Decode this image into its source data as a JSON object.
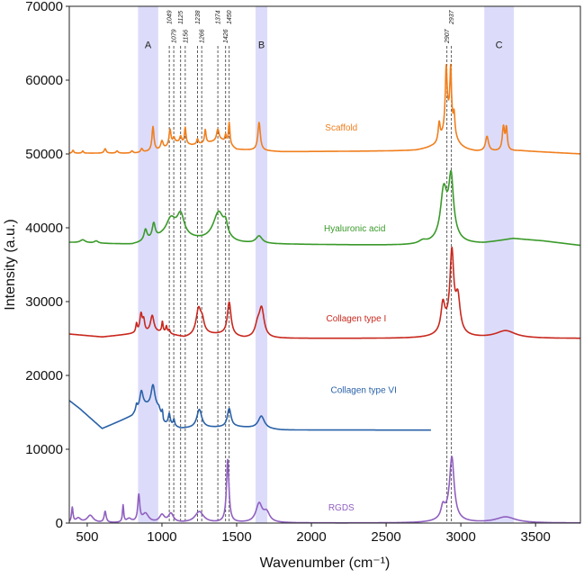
{
  "chart_data": {
    "type": "line",
    "title": "",
    "xlabel": "Wavenumber (cm⁻¹)",
    "ylabel": "Intensity (a.u.)",
    "xlim": [
      380,
      3800
    ],
    "ylim": [
      0,
      70000
    ],
    "xticks": [
      "500",
      "1000",
      "1500",
      "2000",
      "2500",
      "3000",
      "3500"
    ],
    "yticks": [
      "0",
      "10000",
      "20000",
      "30000",
      "40000",
      "50000",
      "60000",
      "70000"
    ],
    "grid": false,
    "legend": "none",
    "shaded_regions": [
      {
        "label": "A",
        "range": [
          840,
          975
        ]
      },
      {
        "label": "B",
        "range": [
          1626,
          1705
        ]
      },
      {
        "label": "C",
        "range": [
          3157,
          3355
        ]
      }
    ],
    "shade_color": "#dcdcfa",
    "reference_lines": [
      "1049",
      "1079",
      "1125",
      "1156",
      "1238",
      "1266",
      "1374",
      "1426",
      "1450",
      "2907",
      "2937"
    ],
    "series_model": "baseline (piecewise linear) + Lorentzian peaks [center cm-1, height a.u., half-width cm-1]",
    "series": [
      {
        "name": "Scaffold",
        "color": "#f07f1e",
        "label_at": [
          2200,
          53200
        ],
        "xrange": [
          380,
          3800
        ],
        "baseline": [
          [
            380,
            50100
          ],
          [
            820,
            50100
          ],
          [
            1000,
            50500
          ],
          [
            1100,
            51500
          ],
          [
            1200,
            51200
          ],
          [
            1400,
            51800
          ],
          [
            1500,
            50600
          ],
          [
            1800,
            50300
          ],
          [
            2700,
            50400
          ],
          [
            2800,
            50600
          ],
          [
            3100,
            50200
          ],
          [
            3400,
            50400
          ],
          [
            3800,
            50000
          ]
        ],
        "peaks": [
          [
            405,
            400,
            6
          ],
          [
            470,
            300,
            6
          ],
          [
            620,
            600,
            8
          ],
          [
            700,
            300,
            8
          ],
          [
            800,
            300,
            8
          ],
          [
            865,
            500,
            8
          ],
          [
            940,
            3300,
            8
          ],
          [
            1000,
            1200,
            10
          ],
          [
            1054,
            2200,
            8
          ],
          [
            1080,
            800,
            8
          ],
          [
            1125,
            900,
            8
          ],
          [
            1156,
            2200,
            6
          ],
          [
            1238,
            700,
            6
          ],
          [
            1290,
            1800,
            6
          ],
          [
            1374,
            1600,
            10
          ],
          [
            1426,
            1000,
            6
          ],
          [
            1450,
            3000,
            6
          ],
          [
            1650,
            3800,
            10
          ],
          [
            2920,
            4500,
            40
          ],
          [
            2855,
            2500,
            8
          ],
          [
            2902,
            7500,
            7
          ],
          [
            2932,
            7000,
            6
          ],
          [
            2955,
            2500,
            6
          ],
          [
            3175,
            2000,
            12
          ],
          [
            3285,
            3200,
            9
          ],
          [
            3305,
            2900,
            7
          ]
        ]
      },
      {
        "name": "Hyaluronic acid",
        "color": "#3a9a2a",
        "label_at": [
          2290,
          39500
        ],
        "xrange": [
          380,
          3800
        ],
        "baseline": [
          [
            380,
            38000
          ],
          [
            800,
            37700
          ],
          [
            1000,
            38500
          ],
          [
            1200,
            38300
          ],
          [
            1500,
            37800
          ],
          [
            2600,
            37600
          ],
          [
            3000,
            37600
          ],
          [
            3150,
            37800
          ],
          [
            3350,
            38500
          ],
          [
            3550,
            38200
          ],
          [
            3800,
            37600
          ]
        ],
        "peaks": [
          [
            470,
            400,
            20
          ],
          [
            560,
            300,
            15
          ],
          [
            890,
            1500,
            12
          ],
          [
            945,
            2000,
            12
          ],
          [
            1060,
            2500,
            40
          ],
          [
            1125,
            3000,
            30
          ],
          [
            1380,
            4000,
            45
          ],
          [
            1426,
            1500,
            15
          ],
          [
            1650,
            1000,
            25
          ],
          [
            2745,
            400,
            30
          ],
          [
            2885,
            6000,
            25
          ],
          [
            2935,
            7000,
            18
          ],
          [
            2920,
            2000,
            60
          ]
        ]
      },
      {
        "name": "Collagen type I",
        "color": "#c8281e",
        "label_at": [
          2300,
          27300
        ],
        "xrange": [
          380,
          3800
        ],
        "baseline": [
          [
            380,
            25600
          ],
          [
            600,
            25200
          ],
          [
            800,
            25600
          ],
          [
            1000,
            25800
          ],
          [
            1150,
            25100
          ],
          [
            1300,
            25500
          ],
          [
            1400,
            25500
          ],
          [
            1550,
            25000
          ],
          [
            3800,
            25000
          ]
        ],
        "peaks": [
          [
            830,
            1200,
            6
          ],
          [
            860,
            2500,
            10
          ],
          [
            878,
            1500,
            8
          ],
          [
            935,
            2300,
            14
          ],
          [
            1003,
            1400,
            5
          ],
          [
            1030,
            900,
            6
          ],
          [
            1049,
            500,
            6
          ],
          [
            1245,
            3500,
            20
          ],
          [
            1270,
            1500,
            15
          ],
          [
            1450,
            4500,
            15
          ],
          [
            1640,
            1500,
            20
          ],
          [
            1667,
            3800,
            20
          ],
          [
            2880,
            3500,
            15
          ],
          [
            2940,
            10000,
            15
          ],
          [
            2980,
            4500,
            18
          ],
          [
            2920,
            1500,
            60
          ],
          [
            3300,
            1000,
            80
          ]
        ]
      },
      {
        "name": "Collagen type VI",
        "color": "#2a62a8",
        "label_at": [
          2350,
          17600
        ],
        "xrange": [
          380,
          2800
        ],
        "baseline": [
          [
            380,
            16600
          ],
          [
            450,
            15500
          ],
          [
            600,
            12800
          ],
          [
            800,
            14500
          ],
          [
            870,
            16000
          ],
          [
            980,
            15500
          ],
          [
            1010,
            13500
          ],
          [
            1125,
            12800
          ],
          [
            1500,
            13000
          ],
          [
            1800,
            12600
          ],
          [
            2800,
            12600
          ]
        ],
        "peaks": [
          [
            830,
            800,
            6
          ],
          [
            862,
            2000,
            12
          ],
          [
            940,
            3000,
            15
          ],
          [
            1003,
            1200,
            5
          ],
          [
            1049,
            1500,
            8
          ],
          [
            1080,
            900,
            6
          ],
          [
            1250,
            2500,
            20
          ],
          [
            1450,
            2500,
            15
          ],
          [
            1665,
            1700,
            25
          ]
        ]
      },
      {
        "name": "RGDS",
        "color": "#9060c0",
        "label_at": [
          2200,
          1700
        ],
        "xrange": [
          380,
          3800
        ],
        "baseline": [
          [
            380,
            0
          ],
          [
            3800,
            0
          ]
        ],
        "peaks": [
          [
            400,
            2000,
            6
          ],
          [
            440,
            600,
            20
          ],
          [
            520,
            1000,
            25
          ],
          [
            620,
            1500,
            8
          ],
          [
            740,
            2300,
            5
          ],
          [
            780,
            500,
            20
          ],
          [
            845,
            3600,
            8
          ],
          [
            890,
            1200,
            25
          ],
          [
            1000,
            1000,
            20
          ],
          [
            1060,
            1200,
            20
          ],
          [
            1250,
            1500,
            35
          ],
          [
            1440,
            8500,
            10
          ],
          [
            1650,
            2500,
            25
          ],
          [
            1700,
            1300,
            25
          ],
          [
            2880,
            1500,
            15
          ],
          [
            2940,
            8000,
            18
          ],
          [
            2920,
            1000,
            60
          ],
          [
            3300,
            800,
            80
          ]
        ]
      }
    ]
  }
}
